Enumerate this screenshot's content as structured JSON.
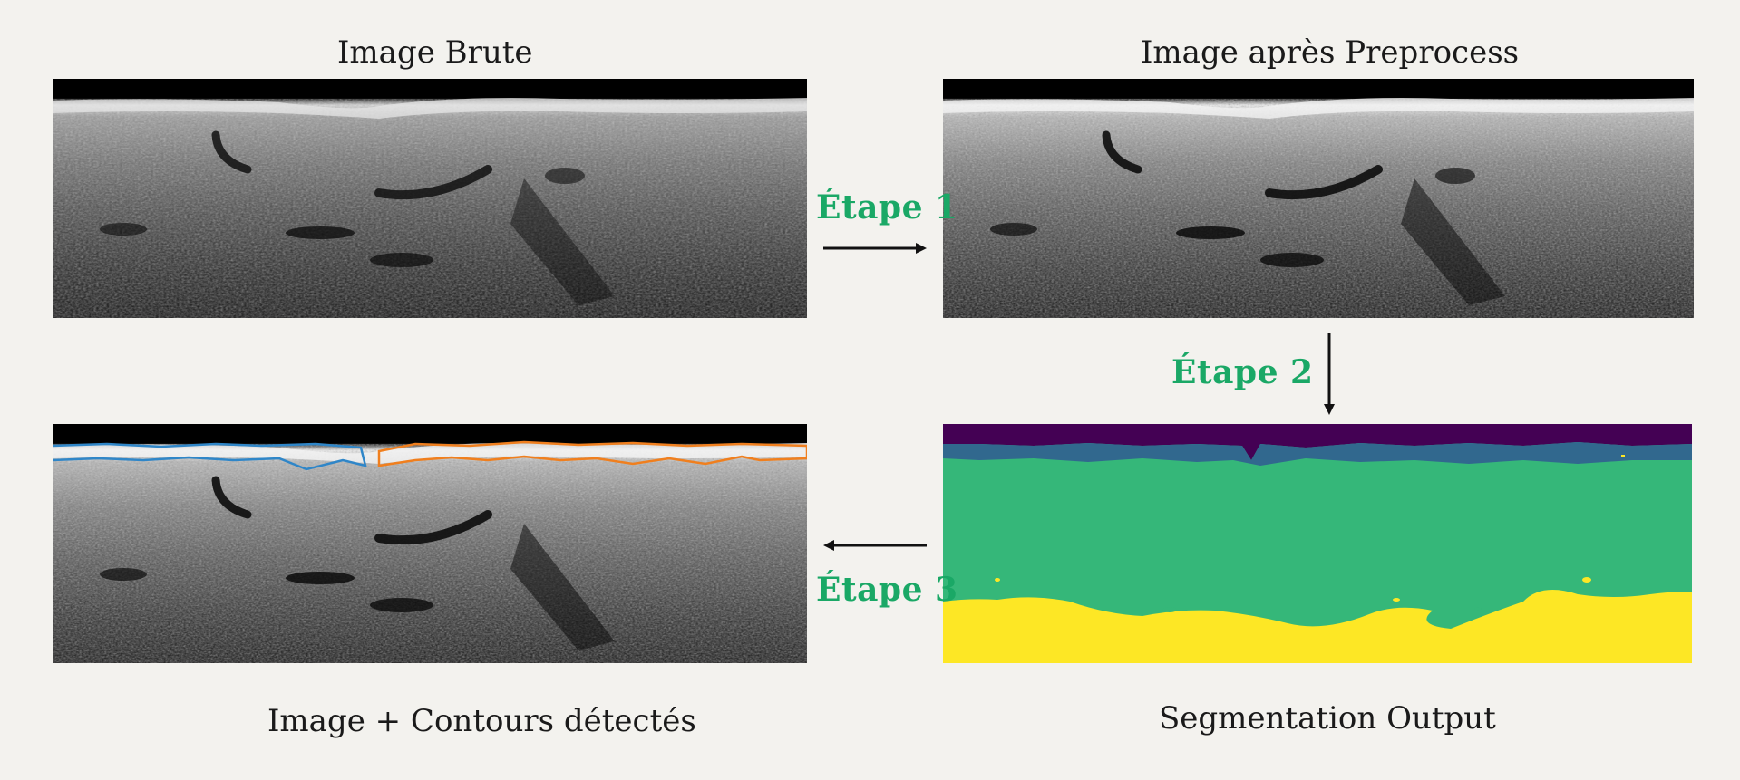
{
  "titles": {
    "raw": "Image Brute",
    "preprocessed": "Image après Preprocess",
    "contours": "Image + Contours détectés",
    "segmentation": "Segmentation Output"
  },
  "steps": {
    "step1": "Étape  1",
    "step2": "Étape  2",
    "step3": "Étape  3"
  },
  "colors": {
    "background": "#f3f2ee",
    "step_text": "#1aa866",
    "arrow": "#111111",
    "contour_blue": "#2f86c8",
    "contour_orange": "#f07f1e",
    "seg_class_0": "#440154",
    "seg_class_1": "#31688e",
    "seg_class_2": "#35b779",
    "seg_class_3": "#fde725"
  }
}
